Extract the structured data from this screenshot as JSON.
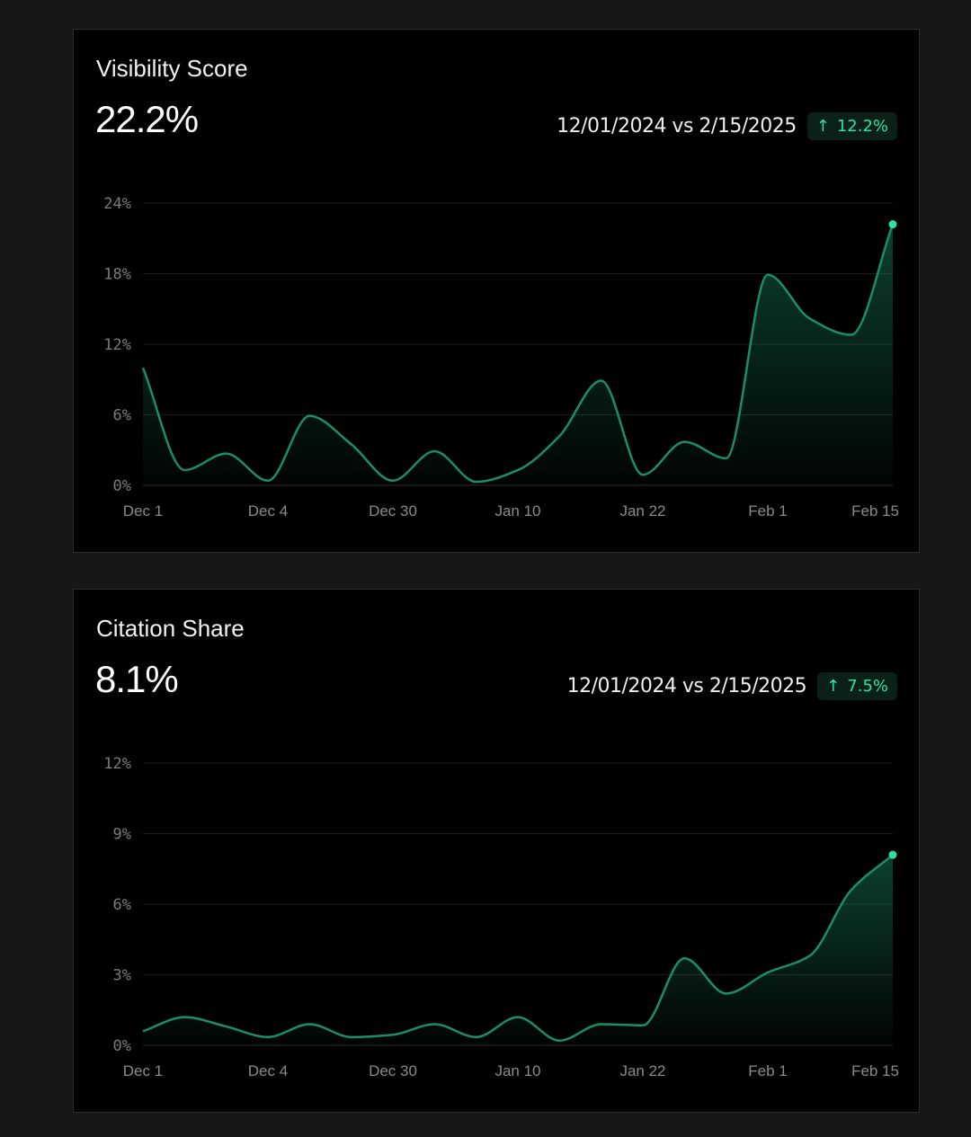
{
  "chart_data": [
    {
      "type": "area",
      "title": "Visibility Score",
      "value": "22.2%",
      "comparison": "12/01/2024 vs 2/15/2025",
      "change": "12.2%",
      "change_icon": "arrow-up-icon",
      "yticks": [
        "0%",
        "6%",
        "12%",
        "18%",
        "24%"
      ],
      "ylim": [
        0,
        24
      ],
      "xticks": [
        "Dec 1",
        "Dec 4",
        "Dec 30",
        "Jan 10",
        "Jan 22",
        "Feb 1",
        "Feb 15"
      ],
      "values": [
        10.0,
        1.3,
        2.7,
        0.4,
        5.9,
        3.5,
        0.4,
        2.9,
        0.3,
        1.3,
        4.2,
        8.9,
        0.9,
        3.7,
        2.3,
        17.9,
        14.2,
        12.8,
        22.2
      ],
      "colors": {
        "line": "#1a8f66",
        "dot": "#2de3a0"
      }
    },
    {
      "type": "area",
      "title": "Citation Share",
      "value": "8.1%",
      "comparison": "12/01/2024 vs 2/15/2025",
      "change": "7.5%",
      "change_icon": "arrow-up-icon",
      "yticks": [
        "0%",
        "3%",
        "6%",
        "9%",
        "12%"
      ],
      "ylim": [
        0,
        12
      ],
      "xticks": [
        "Dec 1",
        "Dec 4",
        "Dec 30",
        "Jan 10",
        "Jan 22",
        "Feb 1",
        "Feb 15"
      ],
      "values": [
        0.6,
        1.2,
        0.8,
        0.35,
        0.9,
        0.35,
        0.45,
        0.9,
        0.35,
        1.2,
        0.2,
        0.9,
        0.85,
        3.7,
        2.2,
        3.1,
        3.8,
        6.6,
        8.1
      ],
      "colors": {
        "line": "#1a8f66",
        "dot": "#2de3a0"
      }
    }
  ]
}
